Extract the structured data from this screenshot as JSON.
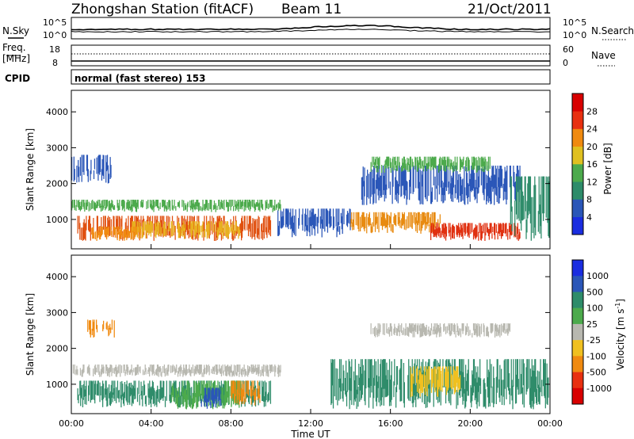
{
  "header": {
    "station": "Zhongshan Station (fitACF)",
    "beam": "Beam 11",
    "date": "21/Oct/2011"
  },
  "side_labels": {
    "nsky": "N.Sky",
    "freq_line1": "Freq.",
    "freq_line2": "[MHz]",
    "cpid": "CPID",
    "nsearch": "N.Search",
    "nave": "Nave"
  },
  "strip_ticks": {
    "nsky_top": "10^5",
    "nsky_bottom": "10^0",
    "freq_top": "18",
    "freq_bottom": "8",
    "nave_top": "60",
    "nave_bottom": "0"
  },
  "mode_text": "normal (fast stereo) 153",
  "chart_data": [
    {
      "type": "heatmap",
      "name": "power-panel",
      "ylabel": "Slant Range [km]",
      "xlabel": "Time UT",
      "ylim": [
        180,
        4600
      ],
      "xlim": [
        0,
        24
      ],
      "yticks": [
        "1000",
        "2000",
        "3000",
        "4000"
      ],
      "yticks_values": [
        1000,
        2000,
        3000,
        4000
      ],
      "colorbar": {
        "label": "Power [dB]",
        "ticks": [
          "4",
          "8",
          "12",
          "16",
          "20",
          "24",
          "28"
        ],
        "colors": [
          "#1a2de0",
          "#2a56b8",
          "#2e8c6a",
          "#4caa4c",
          "#e0c020",
          "#f08a10",
          "#e83010",
          "#d80000"
        ]
      },
      "bands": [
        {
          "t0": 0.0,
          "t1": 10.5,
          "r0": 1200,
          "r1": 1550,
          "color": "#4caa4c"
        },
        {
          "t0": 0.3,
          "t1": 10.0,
          "r0": 400,
          "r1": 1100,
          "color": "#e05010"
        },
        {
          "t0": 3.0,
          "t1": 8.5,
          "r0": 450,
          "r1": 950,
          "color": "#e8b020"
        },
        {
          "t0": 1.0,
          "t1": 3.5,
          "r0": 400,
          "r1": 800,
          "color": "#f08a10"
        },
        {
          "t0": 10.3,
          "t1": 14.0,
          "r0": 500,
          "r1": 1300,
          "color": "#2a56b8"
        },
        {
          "t0": 14.0,
          "t1": 18.5,
          "r0": 600,
          "r1": 1200,
          "color": "#e88a10"
        },
        {
          "t0": 18.0,
          "t1": 22.5,
          "r0": 400,
          "r1": 900,
          "color": "#e03010"
        },
        {
          "t0": 14.5,
          "t1": 22.5,
          "r0": 1400,
          "r1": 2500,
          "color": "#2a56b8"
        },
        {
          "t0": 15.0,
          "t1": 21.0,
          "r0": 2300,
          "r1": 2750,
          "color": "#4caa4c"
        },
        {
          "t0": 0.0,
          "t1": 2.0,
          "r0": 2000,
          "r1": 2800,
          "color": "#2a56b8"
        },
        {
          "t0": 22.0,
          "t1": 24.0,
          "r0": 400,
          "r1": 2200,
          "color": "#2e8c6a"
        }
      ]
    },
    {
      "type": "heatmap",
      "name": "velocity-panel",
      "ylabel": "Slant Range [km]",
      "xlabel": "Time UT",
      "ylim": [
        180,
        4600
      ],
      "xlim": [
        0,
        24
      ],
      "yticks": [
        "1000",
        "2000",
        "3000",
        "4000"
      ],
      "yticks_values": [
        1000,
        2000,
        3000,
        4000
      ],
      "xticks": [
        "00:00",
        "04:00",
        "08:00",
        "12:00",
        "16:00",
        "20:00",
        "00:00"
      ],
      "xticks_values": [
        0,
        4,
        8,
        12,
        16,
        20,
        24
      ],
      "colorbar": {
        "label_main": "Velocity [m s",
        "label_sup": "-1",
        "label_end": "]",
        "ticks": [
          "1000",
          "500",
          "100",
          "25",
          "-25",
          "-100",
          "-500",
          "-1000"
        ],
        "colors": [
          "#1a2de0",
          "#2a56b8",
          "#2e8c6a",
          "#4caa4c",
          "#b8b8b0",
          "#f0c020",
          "#f08a10",
          "#e83010",
          "#d80000"
        ]
      },
      "bands": [
        {
          "t0": 0.0,
          "t1": 10.5,
          "r0": 1200,
          "r1": 1550,
          "color": "#b8b8b0"
        },
        {
          "t0": 0.3,
          "t1": 10.0,
          "r0": 350,
          "r1": 1100,
          "color": "#2e8c6a"
        },
        {
          "t0": 5.0,
          "t1": 8.5,
          "r0": 300,
          "r1": 1100,
          "color": "#4caa4c"
        },
        {
          "t0": 6.5,
          "t1": 7.5,
          "r0": 300,
          "r1": 900,
          "color": "#2a56b8"
        },
        {
          "t0": 8.0,
          "t1": 9.5,
          "r0": 400,
          "r1": 1100,
          "color": "#f08a10"
        },
        {
          "t0": 0.8,
          "t1": 2.2,
          "r0": 2300,
          "r1": 2800,
          "color": "#f08a10"
        },
        {
          "t0": 13.0,
          "t1": 24.0,
          "r0": 300,
          "r1": 1700,
          "color": "#2e8c6a"
        },
        {
          "t0": 15.0,
          "t1": 22.0,
          "r0": 2300,
          "r1": 2700,
          "color": "#b8b8b0"
        },
        {
          "t0": 17.0,
          "t1": 19.5,
          "r0": 600,
          "r1": 1500,
          "color": "#f0c020"
        }
      ]
    }
  ],
  "time_label": "Time UT",
  "colors": {
    "frame": "#000000",
    "grid_dots": "#000000"
  }
}
